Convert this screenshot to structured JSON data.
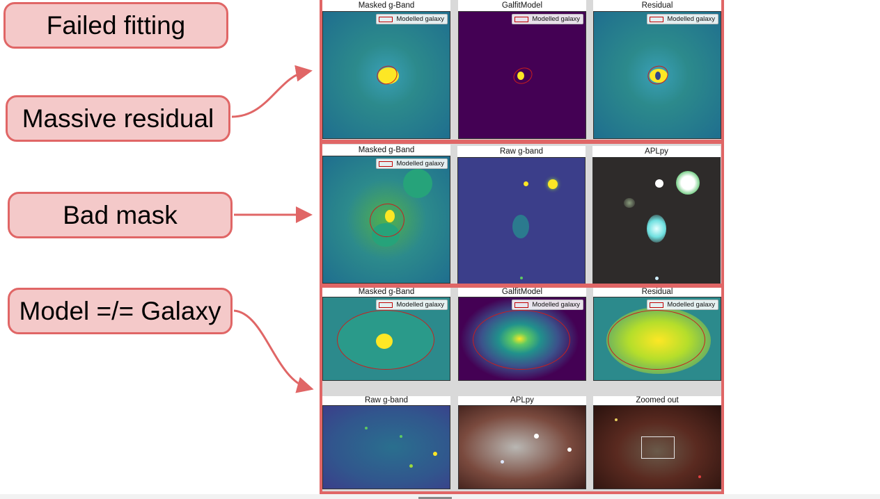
{
  "callouts": {
    "failed": "Failed fitting",
    "residual": "Massive residual",
    "mask": "Bad mask",
    "model": "Model =/= Galaxy"
  },
  "legend_label": "Modelled galaxy",
  "rows": {
    "r1": [
      "Masked g-Band",
      "GalfitModel",
      "Residual"
    ],
    "r2": [
      "Masked g-Band",
      "Raw g-band",
      "APLpy"
    ],
    "r3": [
      "Masked g-Band",
      "GalfitModel",
      "Residual"
    ],
    "r4": [
      "Raw g-band",
      "APLpy",
      "Zoomed out"
    ]
  },
  "colors": {
    "accent": "#e06666",
    "callout_fill": "#f4c9c9",
    "viridis_field": "#2c8a8c",
    "viridis_dark": "#440154",
    "viridis_bright": "#fde725",
    "ellipse": "#c81e1e"
  }
}
